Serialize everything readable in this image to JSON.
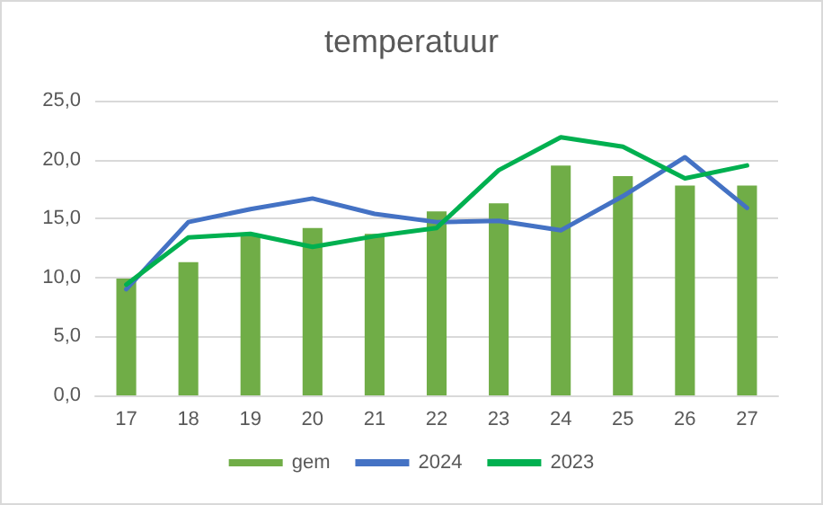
{
  "chart_data": {
    "type": "bar",
    "title": "temperatuur",
    "categories": [
      "17",
      "18",
      "19",
      "20",
      "21",
      "22",
      "23",
      "24",
      "25",
      "26",
      "27"
    ],
    "series": [
      {
        "name": "gem",
        "color": "#70ad47",
        "values": [
          9.9,
          11.3,
          13.7,
          14.2,
          13.7,
          15.6,
          16.3,
          19.5,
          18.6,
          17.8,
          17.8
        ]
      },
      {
        "name": "2024",
        "type": "line",
        "color": "#4472c4",
        "values": [
          9.0,
          14.7,
          15.8,
          16.7,
          15.4,
          14.7,
          14.8,
          14.0,
          16.9,
          20.2,
          15.9
        ]
      },
      {
        "name": "2023",
        "type": "line",
        "color": "#00b050",
        "values": [
          9.4,
          13.4,
          13.7,
          12.6,
          13.5,
          14.2,
          19.1,
          21.9,
          21.1,
          18.4,
          19.5
        ]
      }
    ],
    "ylim": [
      0,
      25
    ],
    "yticks": [
      {
        "value": 0,
        "label": "0,0"
      },
      {
        "value": 5,
        "label": "5,0"
      },
      {
        "value": 10,
        "label": "10,0"
      },
      {
        "value": 15,
        "label": "15,0"
      },
      {
        "value": 20,
        "label": "20,0"
      },
      {
        "value": 25,
        "label": "25,0"
      }
    ],
    "grid": "y",
    "legend": "bottom",
    "marker": "none",
    "line_style": "solid"
  }
}
